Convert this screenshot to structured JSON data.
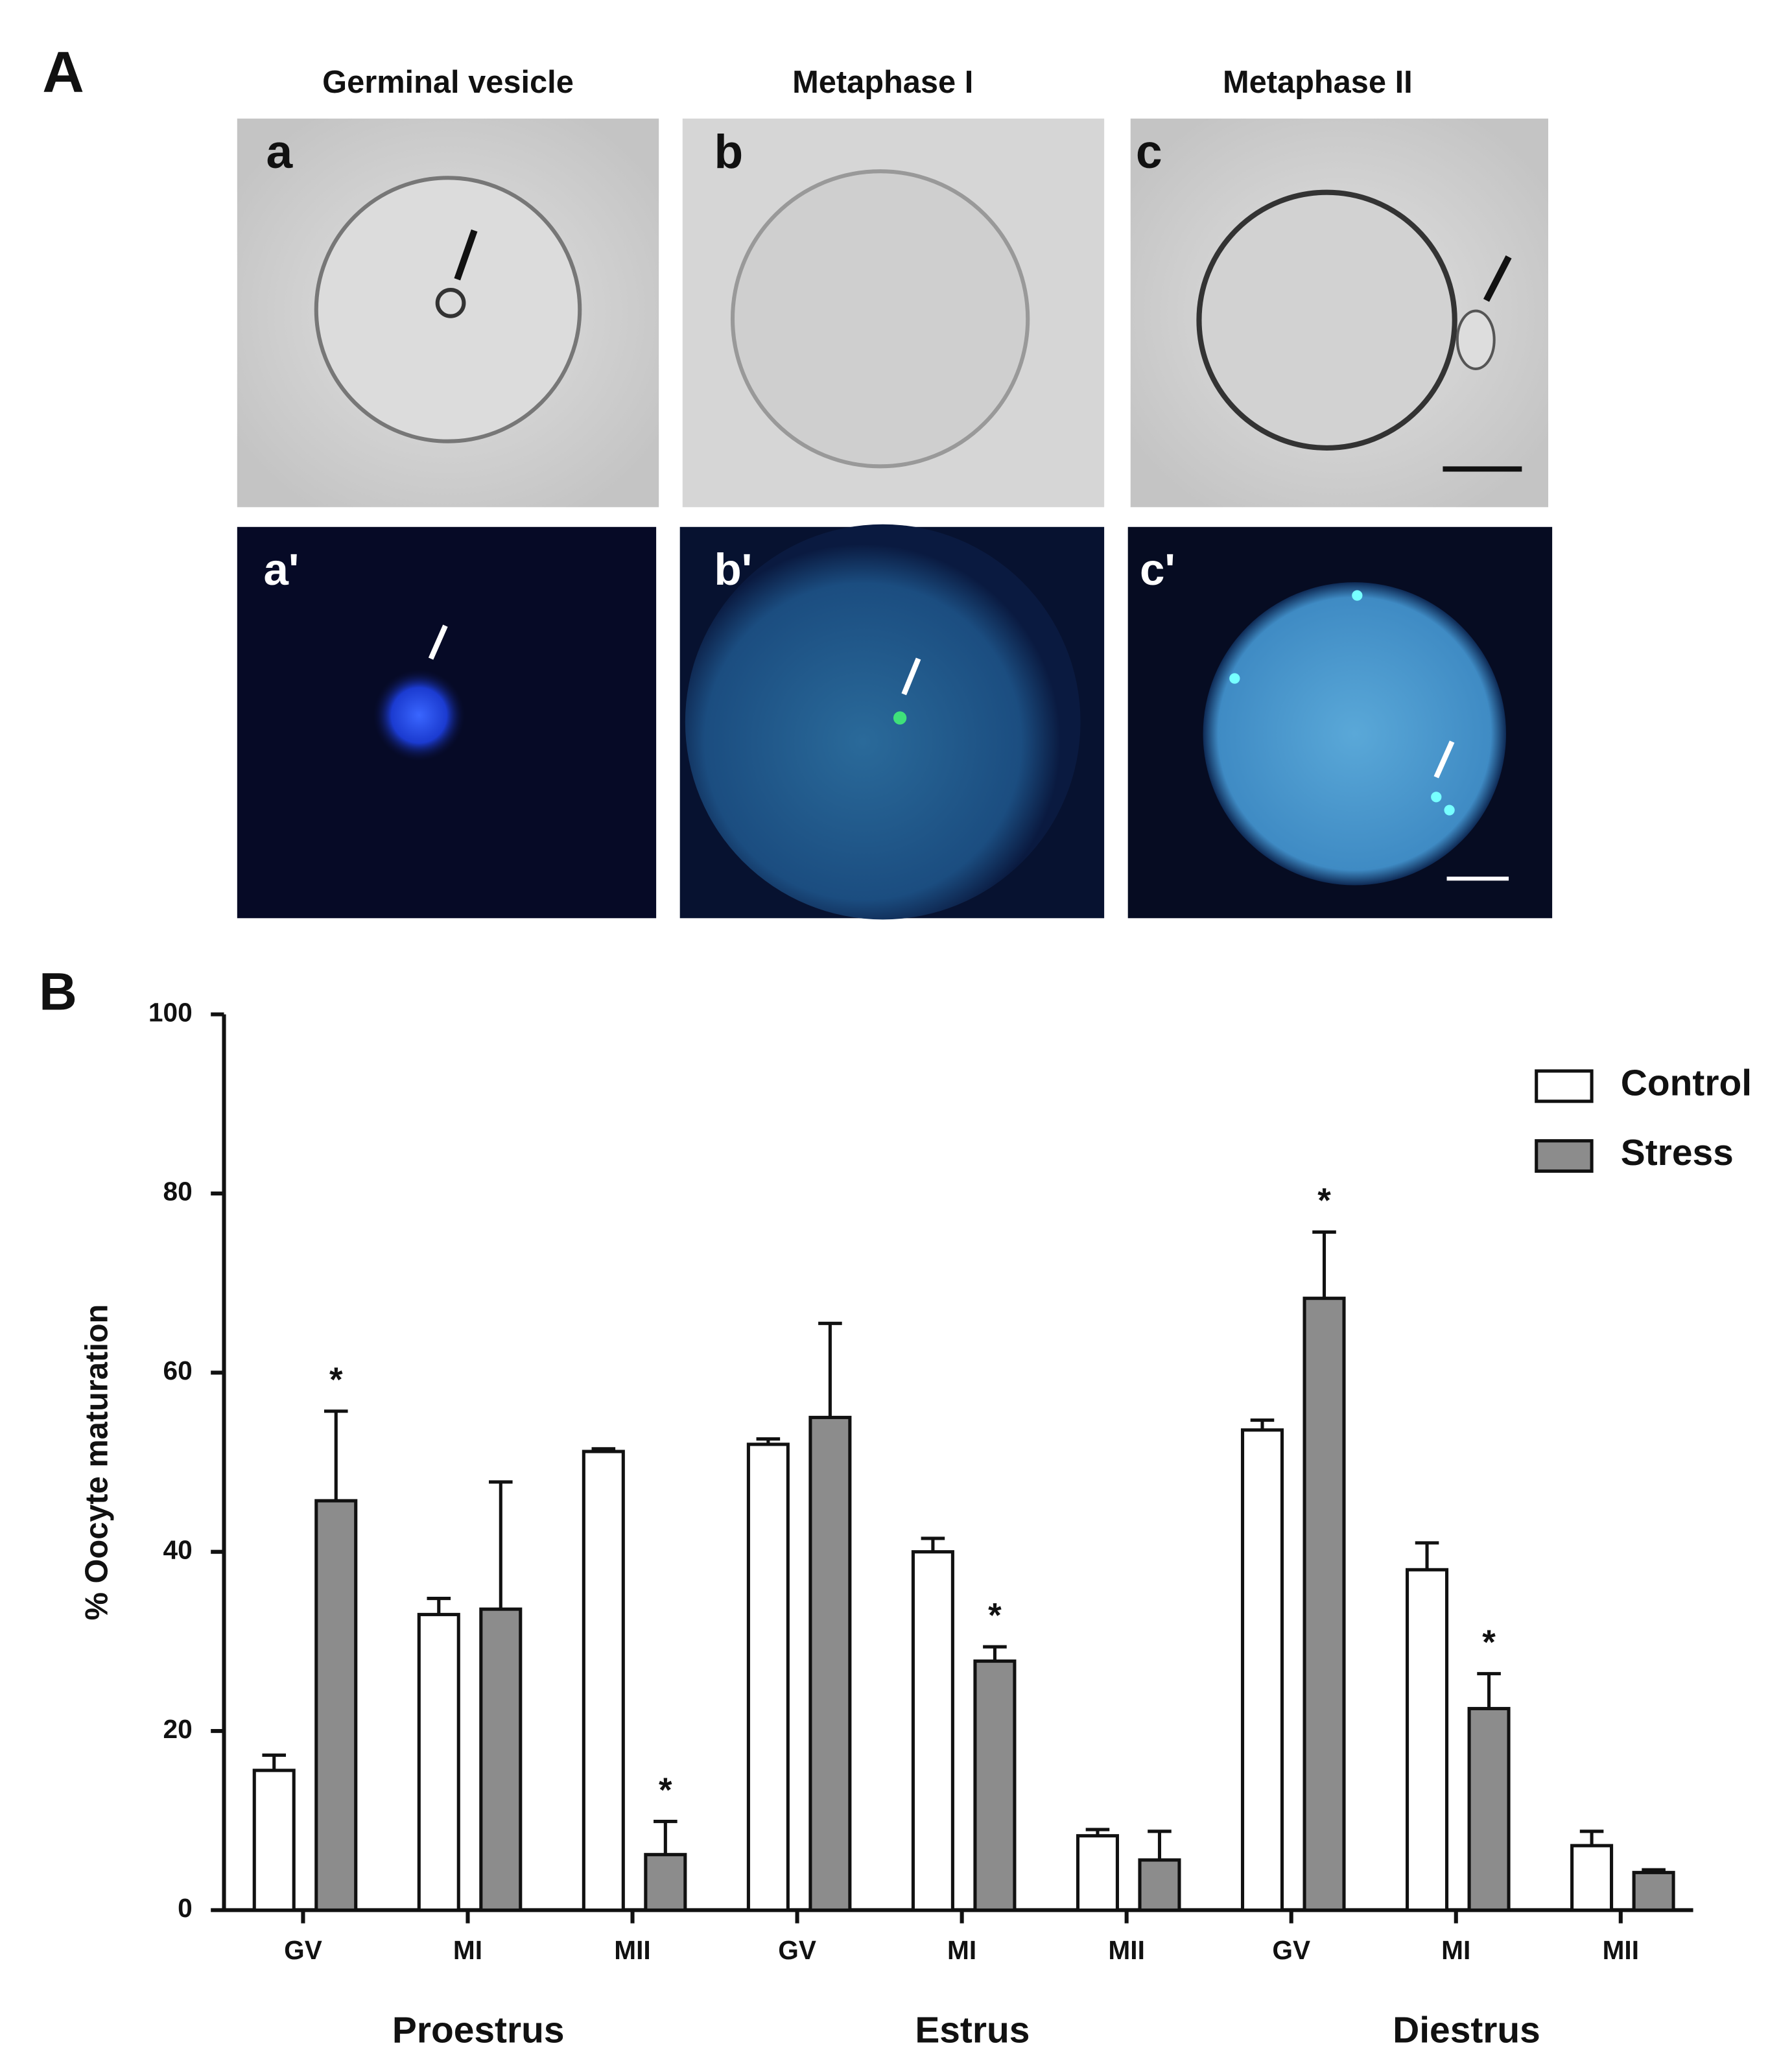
{
  "panel_a": {
    "label": "A",
    "columns": [
      "Germinal vesicle",
      "Metaphase I",
      "Metaphase II"
    ],
    "brightfield_labels": [
      "a",
      "b",
      "c"
    ],
    "fluorescence_labels": [
      "a'",
      "b'",
      "c'"
    ]
  },
  "chart_data": {
    "type": "bar",
    "panel_label": "B",
    "y_label": "% Oocyte maturation",
    "categories": [
      "GV",
      "MI",
      "MII",
      "GV",
      "MI",
      "MII",
      "GV",
      "MI",
      "MII"
    ],
    "groups": [
      "Proestrus",
      "Estrus",
      "Diestrus"
    ],
    "series": [
      {
        "name": "Control",
        "color": "#ffffff",
        "values": [
          15.6,
          33,
          51.2,
          52,
          40,
          8.3,
          53.6,
          38,
          7.2
        ],
        "errors": [
          1.7,
          1.8,
          0.3,
          0.6,
          1.5,
          0.7,
          1.1,
          3,
          1.6
        ]
      },
      {
        "name": "Stress",
        "color": "#8c8c8c",
        "values": [
          45.7,
          33.6,
          6.2,
          55,
          27.8,
          5.6,
          68.3,
          22.5,
          4.2
        ],
        "errors": [
          10,
          14.2,
          3.7,
          10.5,
          1.6,
          3.2,
          7.4,
          3.9,
          0.3
        ],
        "annotations": [
          "*",
          null,
          "*",
          null,
          "*",
          null,
          "*",
          "*",
          null
        ]
      }
    ],
    "ylim": [
      0,
      100
    ],
    "yticks": [
      0,
      20,
      40,
      60,
      80,
      100
    ]
  }
}
